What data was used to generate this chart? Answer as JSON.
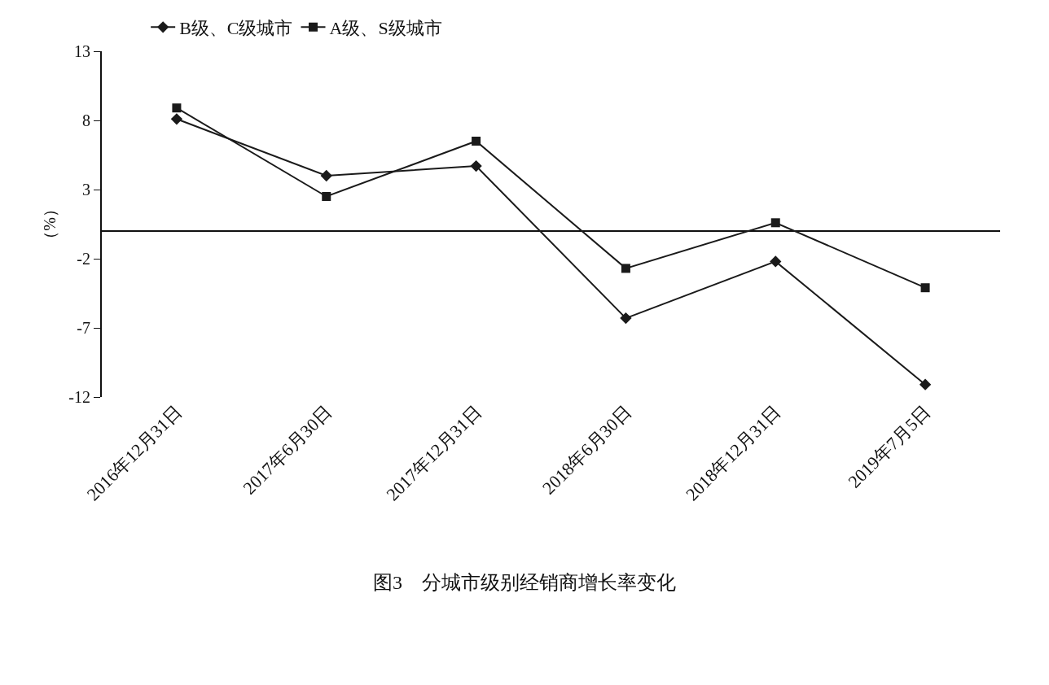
{
  "chart_data": {
    "type": "line",
    "title": "图3　分城市级别经销商增长率变化",
    "ylabel": "（%）",
    "categories": [
      "2016年12月31日",
      "2017年6月30日",
      "2017年12月31日",
      "2018年6月30日",
      "2018年12月31日",
      "2019年7月5日"
    ],
    "series": [
      {
        "name": "B级、C级城市",
        "color": "#1a1a1a",
        "marker": "diamond",
        "values": [
          8.1,
          4.0,
          4.7,
          -6.3,
          -2.2,
          -11.1
        ]
      },
      {
        "name": "A级、S级城市",
        "color": "#1a1a1a",
        "marker": "square",
        "values": [
          8.9,
          2.5,
          6.5,
          -2.7,
          0.6,
          -4.1
        ]
      }
    ],
    "ylim": [
      -12,
      13
    ],
    "yticks": [
      -12,
      -7,
      -2,
      3,
      8,
      13
    ],
    "grid": false,
    "legend": "top left",
    "line_style": "solid"
  }
}
